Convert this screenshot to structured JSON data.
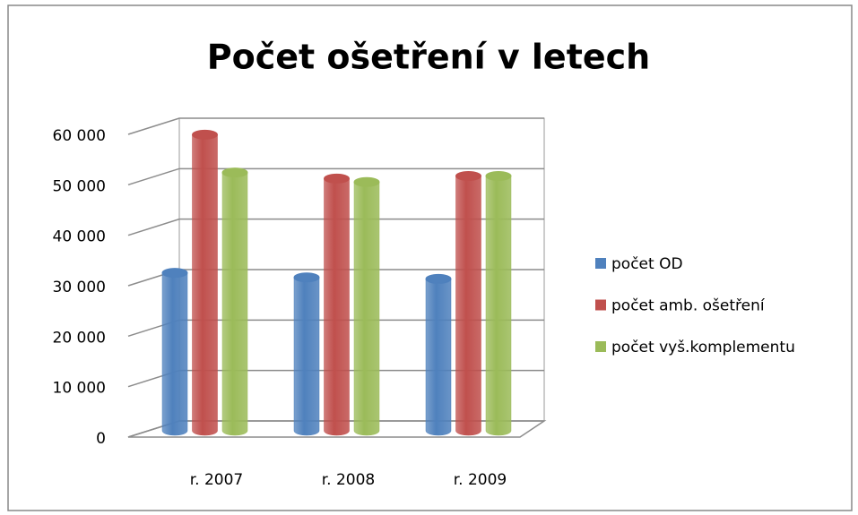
{
  "chart_data": {
    "type": "bar3d",
    "title": "Počet ošetření v letech",
    "categories": [
      "r. 2007",
      "r. 2008",
      "r. 2009"
    ],
    "series": [
      {
        "name": "počet OD",
        "color": "#4f81bd",
        "values": [
          31300,
          30400,
          30100
        ]
      },
      {
        "name": "počet amb. ošetření",
        "color": "#c0504d",
        "values": [
          58700,
          50000,
          50500
        ]
      },
      {
        "name": "počet vyš.komplementu",
        "color": "#9bbb59",
        "values": [
          51200,
          49300,
          50500
        ]
      }
    ],
    "ylim": [
      0,
      60000
    ],
    "yticks": [
      {
        "value": 0,
        "label": "0"
      },
      {
        "value": 10000,
        "label": "10 000"
      },
      {
        "value": 20000,
        "label": "20 000"
      },
      {
        "value": 30000,
        "label": "30 000"
      },
      {
        "value": 40000,
        "label": "40 000"
      },
      {
        "value": 50000,
        "label": "50 000"
      },
      {
        "value": 60000,
        "label": "60 000"
      }
    ],
    "grid": true,
    "legend": "right"
  }
}
